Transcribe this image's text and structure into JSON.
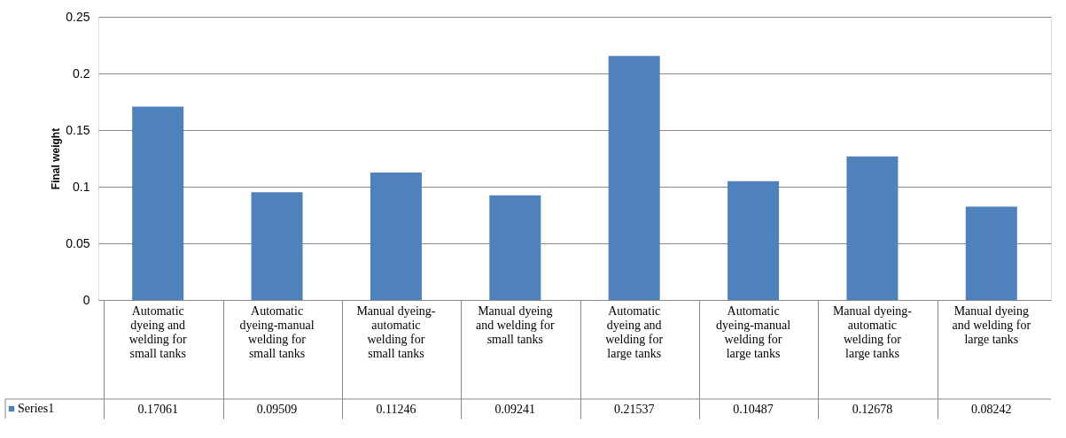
{
  "chart_data": {
    "type": "bar",
    "ylabel": "Final weight",
    "categories": [
      "Automatic dyeing and welding for small tanks",
      "Automatic dyeing-manual welding for small tanks",
      "Manual dyeing-automatic welding for small tanks",
      "Manual dyeing and welding for small tanks",
      "Automatic dyeing and welding for large tanks",
      "Automatic dyeing-manual welding for large tanks",
      "Manual dyeing-automatic welding for large tanks",
      "Manual dyeing and welding for large tanks"
    ],
    "series": [
      {
        "name": "Series1",
        "color": "#4f81bd",
        "values": [
          0.17061,
          0.09509,
          0.11246,
          0.09241,
          0.21537,
          0.10487,
          0.12678,
          0.08242
        ]
      }
    ],
    "ylim": [
      0,
      0.25
    ],
    "yticks": [
      0,
      0.05,
      0.1,
      0.15,
      0.2,
      0.25
    ],
    "grid": "y",
    "legend": "bottom left",
    "data_labels": true
  }
}
